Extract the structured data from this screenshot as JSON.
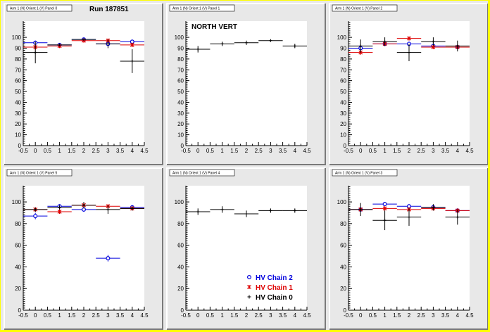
{
  "run_label": "Run 187851",
  "region_label": "NORTH VERT",
  "colors": {
    "chain2": "#0000dd",
    "chain1": "#dd0000",
    "chain0": "#000000",
    "frame": "#ffff00"
  },
  "legend": [
    {
      "key": "chain2",
      "label": "HV Chain 2",
      "marker": "circle"
    },
    {
      "key": "chain1",
      "label": "HV Chain 1",
      "marker": "star"
    },
    {
      "key": "chain0",
      "label": "HV Chain 0",
      "marker": "plus"
    }
  ],
  "chart_data": [
    {
      "type": "scatter",
      "title": "Arm 1 (N) Orient 1 (V) Panel 0",
      "xlim": [
        -0.5,
        4.5
      ],
      "ylim": [
        0,
        115
      ],
      "xticks": [
        -0.5,
        0,
        0.5,
        1,
        1.5,
        2,
        2.5,
        3,
        3.5,
        4,
        4.5
      ],
      "yticks": [
        0,
        10,
        20,
        30,
        40,
        50,
        60,
        70,
        80,
        90,
        100
      ],
      "series": [
        {
          "key": "chain2",
          "x": [
            0,
            1,
            2,
            3,
            4
          ],
          "y": [
            95,
            93,
            98,
            94,
            96
          ],
          "err": [
            2,
            1.5,
            1,
            2,
            1.5
          ]
        },
        {
          "key": "chain1",
          "x": [
            0,
            1,
            2,
            3,
            4
          ],
          "y": [
            91,
            92,
            97,
            97,
            93
          ],
          "err": [
            3,
            1.5,
            1,
            2,
            2
          ]
        },
        {
          "key": "chain0",
          "x": [
            0,
            1,
            2,
            3,
            4
          ],
          "y": [
            86,
            93,
            98,
            94,
            78
          ],
          "err": [
            10,
            0,
            0,
            4,
            11
          ]
        }
      ]
    },
    {
      "type": "scatter",
      "title": "Arm 1 (N) Orient 1 (V) Panel 1",
      "xlim": [
        -0.5,
        4.5
      ],
      "ylim": [
        0,
        115
      ],
      "xticks": [
        -0.5,
        0,
        0.5,
        1,
        1.5,
        2,
        2.5,
        3,
        3.5,
        4,
        4.5
      ],
      "yticks": [
        0,
        10,
        20,
        30,
        40,
        50,
        60,
        70,
        80,
        90,
        100
      ],
      "series": [
        {
          "key": "chain0",
          "x": [
            0,
            1,
            2,
            3,
            4
          ],
          "y": [
            89,
            94,
            95,
            97,
            92
          ],
          "err": [
            3,
            2,
            2,
            1,
            2
          ]
        }
      ]
    },
    {
      "type": "scatter",
      "title": "Arm 1 (N) Orient 1 (V) Panel 2",
      "xlim": [
        -0.5,
        4.5
      ],
      "ylim": [
        0,
        115
      ],
      "xticks": [
        -0.5,
        0,
        0.5,
        1,
        1.5,
        2,
        2.5,
        3,
        3.5,
        4,
        4.5
      ],
      "yticks": [
        0,
        10,
        20,
        30,
        40,
        50,
        60,
        70,
        80,
        90,
        100
      ],
      "series": [
        {
          "key": "chain2",
          "x": [
            0,
            1,
            2,
            3,
            4
          ],
          "y": [
            90,
            94,
            94,
            92,
            91
          ],
          "err": [
            2,
            2,
            2,
            2,
            2
          ]
        },
        {
          "key": "chain1",
          "x": [
            0,
            1,
            2,
            3,
            4
          ],
          "y": [
            86,
            94,
            99,
            91,
            91
          ],
          "err": [
            2,
            2,
            1,
            2,
            2
          ]
        },
        {
          "key": "chain0",
          "x": [
            0,
            1,
            2,
            3,
            4
          ],
          "y": [
            92,
            96,
            86,
            96,
            92
          ],
          "err": [
            6,
            4,
            8,
            4,
            5
          ]
        }
      ]
    },
    {
      "type": "scatter",
      "title": "Arm 1 (N) Orient 1 (V) Panel 5",
      "xlim": [
        -0.5,
        4.5
      ],
      "ylim": [
        0,
        115
      ],
      "xticks": [
        -0.5,
        0,
        0.5,
        1,
        1.5,
        2,
        2.5,
        3,
        3.5,
        4,
        4.5
      ],
      "yticks": [
        0,
        20,
        40,
        60,
        80,
        100
      ],
      "series": [
        {
          "key": "chain2",
          "x": [
            0,
            1,
            2,
            3,
            4
          ],
          "y": [
            87,
            96,
            93,
            48,
            95
          ],
          "err": [
            3,
            2,
            2,
            3,
            2
          ]
        },
        {
          "key": "chain1",
          "x": [
            0,
            1,
            2,
            3,
            4
          ],
          "y": [
            93,
            91,
            97,
            96,
            94
          ],
          "err": [
            2,
            2,
            2,
            2,
            2
          ]
        },
        {
          "key": "chain0",
          "x": [
            0,
            1,
            2,
            3,
            4
          ],
          "y": [
            93,
            95,
            97,
            93,
            94
          ],
          "err": [
            2,
            2,
            3,
            4,
            2
          ]
        }
      ]
    },
    {
      "type": "scatter",
      "title": "Arm 1 (N) Orient 1 (V) Panel 4",
      "xlim": [
        -0.5,
        4.5
      ],
      "ylim": [
        0,
        115
      ],
      "xticks": [
        -0.5,
        0,
        0.5,
        1,
        1.5,
        2,
        2.5,
        3,
        3.5,
        4,
        4.5
      ],
      "yticks": [
        0,
        20,
        40,
        60,
        80,
        100
      ],
      "series": [
        {
          "key": "chain0",
          "x": [
            0,
            1,
            2,
            3,
            4
          ],
          "y": [
            91,
            93,
            89,
            92,
            92
          ],
          "err": [
            3,
            3,
            3,
            2,
            2
          ]
        }
      ]
    },
    {
      "type": "scatter",
      "title": "Arm 1 (N) Orient 1 (V) Panel 3",
      "xlim": [
        -0.5,
        4.5
      ],
      "ylim": [
        0,
        115
      ],
      "xticks": [
        -0.5,
        0,
        0.5,
        1,
        1.5,
        2,
        2.5,
        3,
        3.5,
        4,
        4.5
      ],
      "yticks": [
        0,
        20,
        40,
        60,
        80,
        100
      ],
      "series": [
        {
          "key": "chain2",
          "x": [
            0,
            1,
            2,
            3,
            4
          ],
          "y": [
            93,
            98,
            96,
            95,
            92
          ],
          "err": [
            2,
            2,
            2,
            2,
            2
          ]
        },
        {
          "key": "chain1",
          "x": [
            0,
            1,
            2,
            3,
            4
          ],
          "y": [
            93,
            94,
            93,
            94,
            92
          ],
          "err": [
            2,
            2,
            2,
            2,
            2
          ]
        },
        {
          "key": "chain0",
          "x": [
            0,
            1,
            2,
            3,
            4
          ],
          "y": [
            93,
            83,
            86,
            95,
            86
          ],
          "err": [
            6,
            9,
            8,
            3,
            7
          ]
        }
      ]
    }
  ]
}
